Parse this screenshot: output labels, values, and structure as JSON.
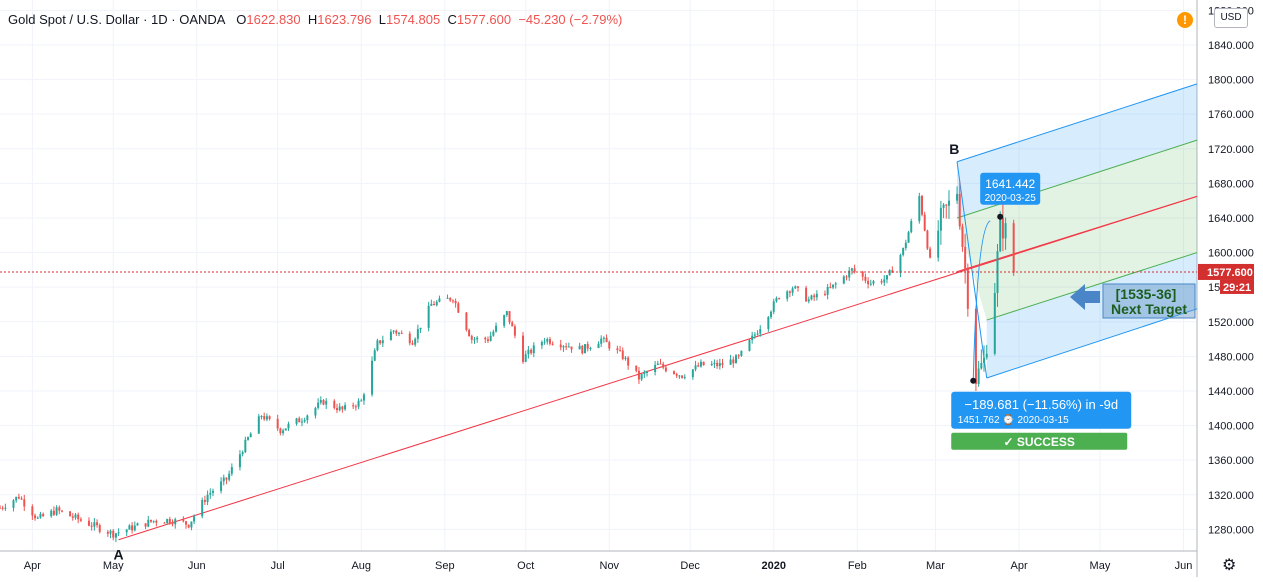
{
  "header": {
    "symbol": "Gold Spot / U.S. Dollar · 1D · OANDA",
    "open_label": "O",
    "open": "1622.830",
    "high_label": "H",
    "high": "1623.796",
    "low_label": "L",
    "low": "1574.805",
    "close_label": "C",
    "close": "1577.600",
    "change": "−45.230 (−2.79%)"
  },
  "toolbar": {
    "alert_glyph": "!",
    "currency": "USD",
    "settings_icon": "gear-icon"
  },
  "colors": {
    "up": "#26a69a",
    "down": "#ef5350",
    "trend": "#f23645",
    "channel_blue": "#2196f3",
    "channel_green": "#4caf50",
    "last_price": "#d32f2f"
  },
  "chart_data": {
    "type": "candlestick",
    "x_tick_labels": [
      "Apr",
      "May",
      "Jun",
      "Jul",
      "Aug",
      "Sep",
      "Oct",
      "Nov",
      "Dec",
      "2020",
      "Feb",
      "Mar",
      "Apr",
      "May",
      "Jun"
    ],
    "y_ticks": [
      1280,
      1320,
      1360,
      1400,
      1440,
      1480,
      1520,
      1560,
      1600,
      1640,
      1680,
      1720,
      1760,
      1800,
      1840,
      1880
    ],
    "ylim": [
      1255,
      1892
    ],
    "xlim": [
      "2019-03-20",
      "2020-06-06"
    ],
    "last_price": {
      "value": 1577.6,
      "label": "1577.600",
      "countdown": "29:21"
    },
    "price_path": [
      [
        "2019-03-20",
        1305
      ],
      [
        "2019-03-27",
        1318
      ],
      [
        "2019-04-03",
        1292
      ],
      [
        "2019-04-10",
        1302
      ],
      [
        "2019-04-17",
        1293
      ],
      [
        "2019-04-24",
        1284
      ],
      [
        "2019-05-01",
        1275
      ],
      [
        "2019-05-09",
        1283
      ],
      [
        "2019-05-16",
        1290
      ],
      [
        "2019-05-22",
        1291
      ],
      [
        "2019-05-29",
        1286
      ],
      [
        "2019-06-05",
        1320
      ],
      [
        "2019-06-12",
        1338
      ],
      [
        "2019-06-20",
        1385
      ],
      [
        "2019-06-25",
        1412
      ],
      [
        "2019-07-02",
        1395
      ],
      [
        "2019-07-10",
        1408
      ],
      [
        "2019-07-18",
        1428
      ],
      [
        "2019-07-25",
        1418
      ],
      [
        "2019-08-01",
        1428
      ],
      [
        "2019-08-07",
        1495
      ],
      [
        "2019-08-13",
        1510
      ],
      [
        "2019-08-20",
        1498
      ],
      [
        "2019-08-27",
        1540
      ],
      [
        "2019-09-04",
        1548
      ],
      [
        "2019-09-11",
        1500
      ],
      [
        "2019-09-17",
        1500
      ],
      [
        "2019-09-24",
        1530
      ],
      [
        "2019-09-30",
        1478
      ],
      [
        "2019-10-08",
        1500
      ],
      [
        "2019-10-15",
        1494
      ],
      [
        "2019-10-22",
        1488
      ],
      [
        "2019-10-29",
        1500
      ],
      [
        "2019-11-06",
        1480
      ],
      [
        "2019-11-12",
        1455
      ],
      [
        "2019-11-19",
        1470
      ],
      [
        "2019-11-28",
        1458
      ],
      [
        "2019-12-05",
        1470
      ],
      [
        "2019-12-12",
        1470
      ],
      [
        "2019-12-19",
        1478
      ],
      [
        "2019-12-26",
        1510
      ],
      [
        "2020-01-03",
        1550
      ],
      [
        "2020-01-08",
        1560
      ],
      [
        "2020-01-14",
        1545
      ],
      [
        "2020-01-22",
        1558
      ],
      [
        "2020-01-30",
        1580
      ],
      [
        "2020-02-06",
        1565
      ],
      [
        "2020-02-12",
        1570
      ],
      [
        "2020-02-18",
        1603
      ],
      [
        "2020-02-24",
        1665
      ],
      [
        "2020-02-28",
        1590
      ],
      [
        "2020-03-03",
        1638
      ],
      [
        "2020-03-09",
        1672
      ],
      [
        "2020-03-12",
        1580
      ],
      [
        "2020-03-16",
        1455
      ],
      [
        "2020-03-19",
        1475
      ],
      [
        "2020-03-23",
        1560
      ],
      [
        "2020-03-25",
        1630
      ],
      [
        "2020-03-27",
        1625
      ],
      [
        "2020-03-30",
        1578
      ]
    ],
    "trend_line": {
      "from": [
        "2019-05-03",
        1268
      ],
      "to": [
        "2020-06-06",
        1665
      ]
    },
    "pitchfork": {
      "median": {
        "from": [
          "2020-03-09",
          1578
        ],
        "to": [
          "2020-06-06",
          1665
        ]
      },
      "upper_outer": {
        "from": [
          "2020-03-09",
          1705
        ],
        "to": [
          "2020-06-06",
          1795
        ]
      },
      "upper_inner": {
        "from": [
          "2020-03-09",
          1640
        ],
        "to": [
          "2020-06-06",
          1730
        ]
      },
      "lower_inner": {
        "from": [
          "2020-03-20",
          1522
        ],
        "to": [
          "2020-06-06",
          1600
        ]
      },
      "lower_outer": {
        "from": [
          "2020-03-20",
          1455
        ],
        "to": [
          "2020-06-06",
          1535
        ]
      }
    },
    "points": [
      {
        "label": "A",
        "date": "2019-05-03",
        "value": 1266
      },
      {
        "label": "B",
        "date": "2020-03-08",
        "value": 1705
      }
    ],
    "annotations": {
      "high": {
        "price": "1641.442",
        "date": "2020-03-25",
        "at": [
          "2020-03-25",
          1641.4
        ]
      },
      "drop": {
        "text": "−189.681 (−11.56%) in -9d",
        "detail": "1451.762 ⌚ 2020-03-15",
        "at": [
          "2020-03-15",
          1451.8
        ]
      },
      "success": "✓ SUCCESS",
      "target_line1": "[1535-36]",
      "target_line2": "Next Target"
    }
  }
}
